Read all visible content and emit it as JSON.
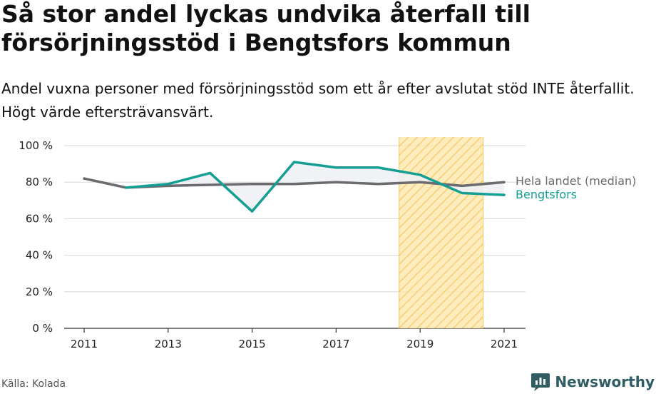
{
  "chart_data": {
    "type": "line",
    "title": "Så stor andel lyckas undvika återfall till försörjningsstöd i Bengtsfors kommun",
    "subtitle": "Andel vuxna personer med försörjningsstöd som ett år efter avslutat stöd INTE återfallit. Högt värde eftersträvansvärt.",
    "x": [
      2011,
      2012,
      2013,
      2014,
      2015,
      2016,
      2017,
      2018,
      2019,
      2020,
      2021
    ],
    "x_ticks": [
      "2011",
      "2013",
      "2015",
      "2017",
      "2019",
      "2021"
    ],
    "y_ticks": [
      "0 %",
      "20 %",
      "40 %",
      "60 %",
      "80 %",
      "100 %"
    ],
    "ylim": [
      0,
      100
    ],
    "grid": true,
    "highlight_range": [
      2018.5,
      2020.5
    ],
    "series": [
      {
        "name": "Hela landet (median)",
        "color": "#6b6b70",
        "values": [
          82,
          77,
          78,
          78.5,
          79,
          79,
          80,
          79,
          80,
          78,
          80
        ]
      },
      {
        "name": "Bengtsfors",
        "color": "#159e93",
        "values": [
          null,
          77,
          79,
          85,
          64,
          91,
          88,
          88,
          84,
          74,
          73
        ]
      }
    ]
  },
  "footer": {
    "source": "Källa: Kolada",
    "brand": "Newsworthy"
  },
  "colors": {
    "highlight_fill": "#fde9b3",
    "highlight_stripe": "#f6c55a",
    "gap_fill": "#eef1f4",
    "grid": "#d8d8d8"
  }
}
